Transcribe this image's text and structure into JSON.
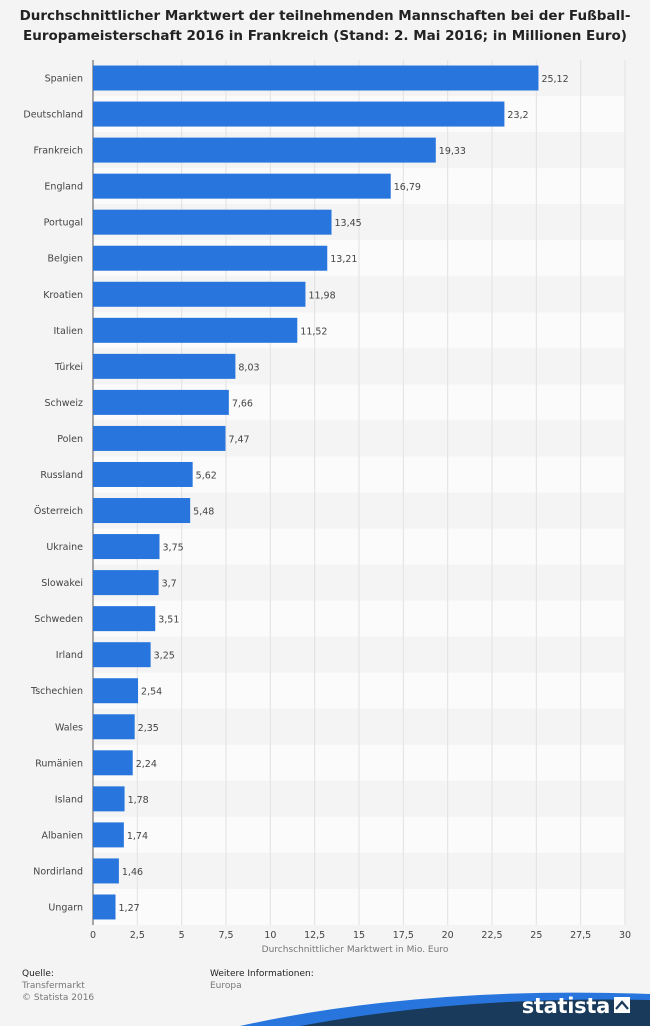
{
  "chart_data": {
    "type": "bar",
    "orientation": "horizontal",
    "title": "Durchschnittlicher Marktwert der teilnehmenden Mannschaften bei der Fußball-Europameisterschaft 2016 in Frankreich (Stand: 2. Mai 2016; in Millionen Euro)",
    "xlabel": "Durchschnittlicher Marktwert in Mio. Euro",
    "ylabel": "",
    "xlim": [
      0,
      30
    ],
    "xticks": [
      "0",
      "2,5",
      "5",
      "7,5",
      "10",
      "12,5",
      "15",
      "17,5",
      "20",
      "22,5",
      "25",
      "27,5",
      "30"
    ],
    "xtick_values": [
      0,
      2.5,
      5,
      7.5,
      10,
      12.5,
      15,
      17.5,
      20,
      22.5,
      25,
      27.5,
      30
    ],
    "categories": [
      "Spanien",
      "Deutschland",
      "Frankreich",
      "England",
      "Portugal",
      "Belgien",
      "Kroatien",
      "Italien",
      "Türkei",
      "Schweiz",
      "Polen",
      "Russland",
      "Österreich",
      "Ukraine",
      "Slowakei",
      "Schweden",
      "Irland",
      "Tschechien",
      "Wales",
      "Rumänien",
      "Island",
      "Albanien",
      "Nordirland",
      "Ungarn"
    ],
    "values": [
      25.12,
      23.2,
      19.33,
      16.79,
      13.45,
      13.21,
      11.98,
      11.52,
      8.03,
      7.66,
      7.47,
      5.62,
      5.48,
      3.75,
      3.7,
      3.51,
      3.25,
      2.54,
      2.35,
      2.24,
      1.78,
      1.74,
      1.46,
      1.27
    ],
    "value_labels": [
      "25,12",
      "23,2",
      "19,33",
      "16,79",
      "13,45",
      "13,21",
      "11,98",
      "11,52",
      "8,03",
      "7,66",
      "7,47",
      "5,62",
      "5,48",
      "3,75",
      "3,7",
      "3,51",
      "3,25",
      "2,54",
      "2,35",
      "2,24",
      "1,78",
      "1,74",
      "1,46",
      "1,27"
    ],
    "grid": true,
    "bar_color": "#2876dd"
  },
  "footer": {
    "source_heading": "Quelle:",
    "source_lines": [
      "Transfermarkt",
      "© Statista 2016"
    ],
    "info_heading": "Weitere Informationen:",
    "info_lines": [
      "Europa"
    ]
  },
  "brand": {
    "name": "statista",
    "bar_color": "#1a3a5c",
    "accent_color": "#2876dd"
  }
}
